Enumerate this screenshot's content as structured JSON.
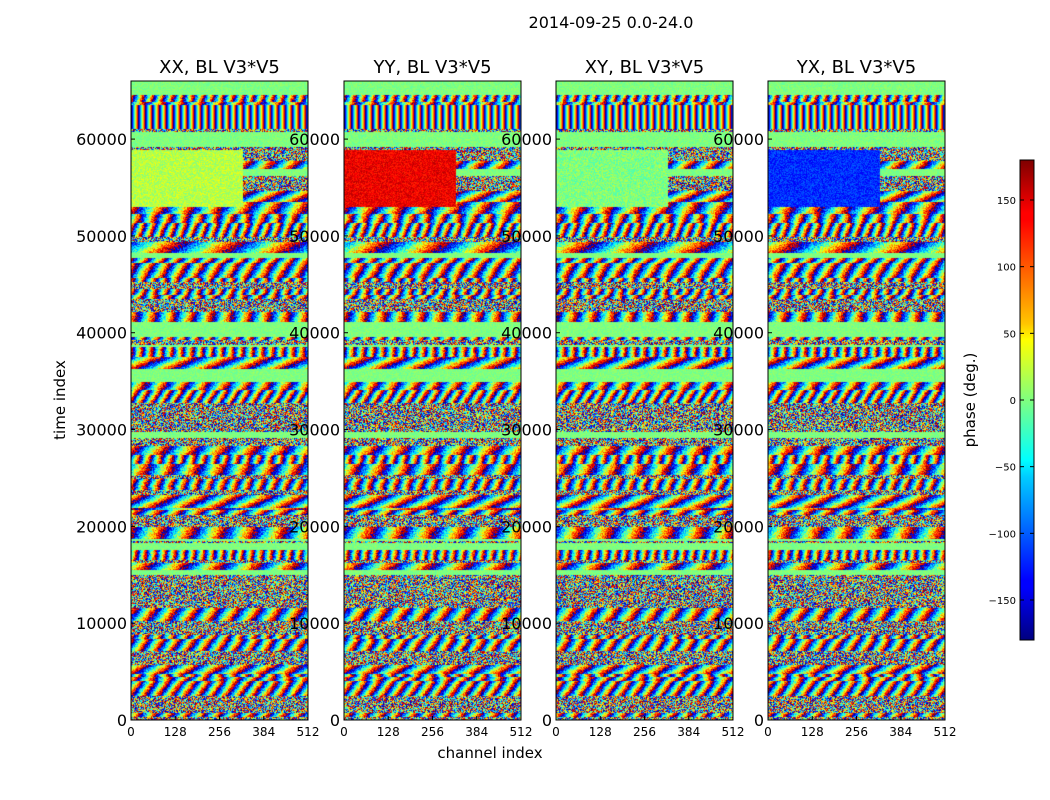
{
  "figure": {
    "suptitle": "2014-09-25 0.0-24.0"
  },
  "chart_data": {
    "type": "heatmap",
    "colormap": "jet",
    "xlabel": "channel index",
    "ylabel": "time index",
    "xlim": [
      0,
      512
    ],
    "ylim": [
      0,
      66000
    ],
    "xticks": [
      0,
      128,
      256,
      384,
      512
    ],
    "xtick_labels": [
      "0",
      "128",
      "256",
      "384",
      "512"
    ],
    "yticks": [
      0,
      10000,
      20000,
      30000,
      40000,
      50000,
      60000
    ],
    "ytick_labels": [
      "0",
      "10000",
      "20000",
      "30000",
      "40000",
      "50000",
      "60000"
    ],
    "panels": [
      {
        "title": "XX, BL V3*V5",
        "dominant_phase_block": 20
      },
      {
        "title": "YY, BL V3*V5",
        "dominant_phase_block": 140
      },
      {
        "title": "XY, BL V3*V5",
        "dominant_phase_block": 0
      },
      {
        "title": "YX, BL V3*V5",
        "dominant_phase_block": -120
      }
    ],
    "colorbar": {
      "label": "phase (deg.)",
      "range": [
        -180,
        180
      ],
      "ticks": [
        -150,
        -100,
        -50,
        0,
        50,
        100,
        150
      ],
      "tick_labels": [
        "−150",
        "−100",
        "−50",
        "0",
        "50",
        "100",
        "150"
      ]
    }
  }
}
